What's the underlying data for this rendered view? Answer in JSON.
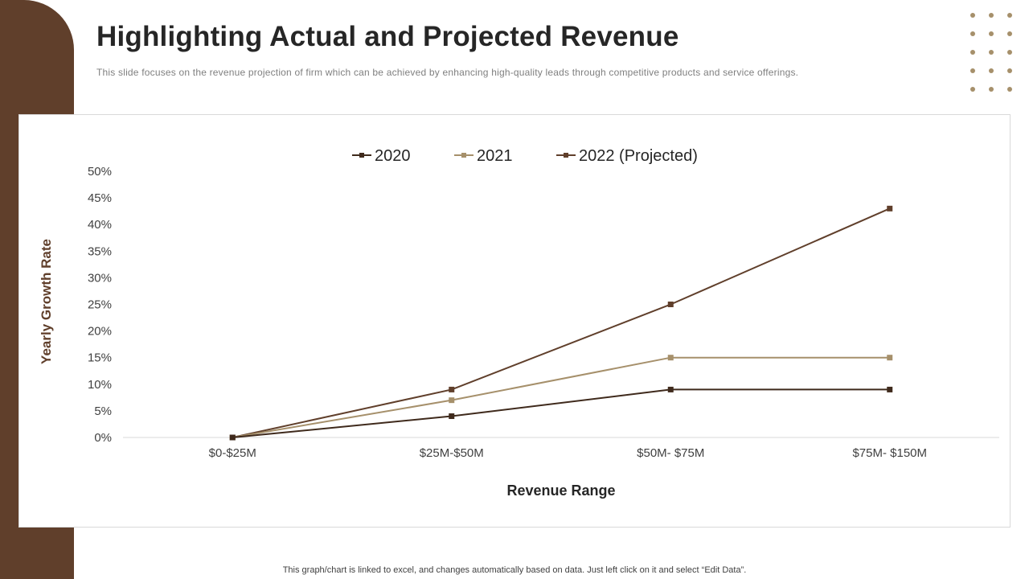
{
  "slide": {
    "title": "Highlighting Actual and Projected Revenue",
    "subtitle": "This slide focuses on the revenue  projection of firm which can be achieved by enhancing high-quality leads through competitive products and service offerings.",
    "y_label": "Yearly Growth Rate",
    "footer": "This graph/chart is linked to excel, and changes automatically based on data. Just left click on it and select “Edit Data”."
  },
  "colors": {
    "sidebar": "#603F2B",
    "accent_dots": "#A6906B"
  },
  "chart_data": {
    "type": "line",
    "title": "",
    "xlabel": "Revenue Range",
    "ylabel": "Yearly Growth Rate",
    "categories": [
      "$0-$25M",
      "$25M-$50M",
      "$50M- $75M",
      "$75M- $150M"
    ],
    "ylim": [
      0,
      50
    ],
    "yticks": [
      0,
      5,
      10,
      15,
      20,
      25,
      30,
      35,
      40,
      45,
      50
    ],
    "ytick_labels": [
      "0%",
      "5%",
      "10%",
      "15%",
      "20%",
      "25%",
      "30%",
      "35%",
      "40%",
      "45%",
      "50%"
    ],
    "legend_position": "top",
    "grid": false,
    "series": [
      {
        "name": "2020",
        "values": [
          0,
          4,
          9,
          9
        ],
        "color": "#3F2A1C"
      },
      {
        "name": "2021",
        "values": [
          0,
          7,
          15,
          15
        ],
        "color": "#A6906B"
      },
      {
        "name": "2022 (Projected)",
        "values": [
          0,
          9,
          25,
          43
        ],
        "color": "#603F2B"
      }
    ]
  }
}
